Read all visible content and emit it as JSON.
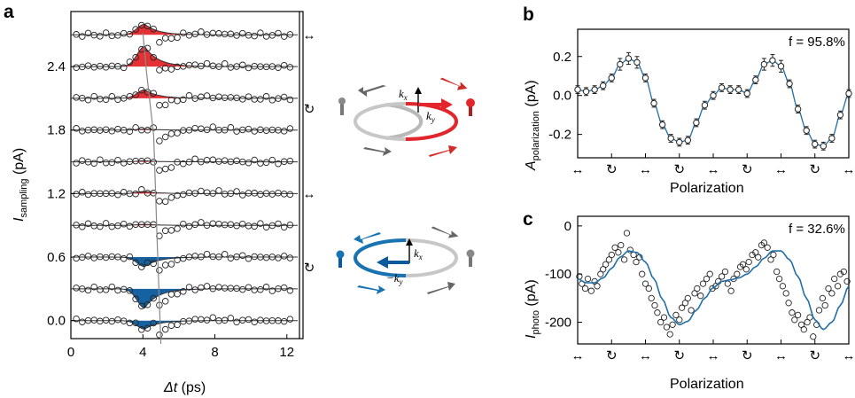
{
  "panels": {
    "a": "a",
    "b": "b",
    "c": "c"
  },
  "chart_data": [
    {
      "panel": "a",
      "type": "line",
      "xlabel_var": "Δt",
      "xlabel_unit": " (ps)",
      "ylabel_var": "I",
      "ylabel_sub": "sampling",
      "ylabel_unit": " (pA)",
      "xlim": [
        0,
        12.7
      ],
      "ylim": [
        -0.17,
        2.92
      ],
      "xticks": [
        "0",
        "4",
        "8",
        "12"
      ],
      "xtick_values": [
        0,
        4,
        8,
        12
      ],
      "yticks": [
        "0.0",
        "0.6",
        "1.2",
        "1.8",
        "2.4"
      ],
      "ytick_values": [
        0.0,
        0.6,
        1.2,
        1.8,
        2.4
      ],
      "offsets": [
        2.7,
        2.4,
        2.1,
        1.8,
        1.5,
        1.2,
        0.9,
        0.6,
        0.3,
        0.0
      ],
      "peak_amplitudes": [
        0.1,
        0.19,
        0.08,
        0.01,
        0.01,
        0.02,
        0.01,
        -0.09,
        -0.18,
        -0.08
      ],
      "peak_center": 4.1,
      "fill_colors": [
        "#e3262b",
        "#e3262b",
        "#e3262b",
        "#e3262b",
        "#e3262b",
        "#e3262b",
        "#e3262b",
        "#0a5a9c",
        "#0a5a9c",
        "#0a5a9c"
      ],
      "dip_trace_x": [
        4.0,
        4.2,
        4.4,
        4.6,
        4.8,
        5.0
      ],
      "dip_trace_y": [
        2.72,
        2.35,
        2.05,
        1.75,
        0.72,
        -0.22
      ],
      "right_labels": [
        "↔",
        "↻",
        "↔",
        "↻"
      ],
      "right_label_values": [
        2.7,
        2.0,
        1.2,
        0.5
      ]
    },
    {
      "panel": "b",
      "type": "line",
      "annotation": "f = 95.8%",
      "xlabel": "Polarization",
      "ylabel_var": "A",
      "ylabel_sub": "polarization",
      "ylabel_unit": " (pA)",
      "ylim": [
        -0.32,
        0.34
      ],
      "yticks": [
        "0.2",
        "0.0",
        "-0.2"
      ],
      "ytick_values": [
        0.2,
        0.0,
        -0.2
      ],
      "xticks": [
        "↔",
        "↻",
        "↔",
        "↻",
        "↔",
        "↻",
        "↔",
        "↻",
        "↔"
      ],
      "x": [
        0,
        1,
        2,
        3,
        4,
        5,
        6,
        7,
        8,
        9,
        10,
        11,
        12,
        13,
        14,
        15,
        16,
        17,
        18,
        19,
        20,
        21,
        22,
        23,
        24,
        25,
        26,
        27,
        28,
        29,
        30,
        31,
        32
      ],
      "xlim": [
        0,
        32
      ],
      "values": [
        0.03,
        0.02,
        0.03,
        0.05,
        0.09,
        0.16,
        0.19,
        0.17,
        0.09,
        -0.04,
        -0.15,
        -0.22,
        -0.24,
        -0.23,
        -0.14,
        -0.05,
        0.0,
        0.04,
        0.03,
        0.03,
        0.01,
        0.08,
        0.16,
        0.18,
        0.15,
        0.06,
        -0.07,
        -0.18,
        -0.25,
        -0.26,
        -0.22,
        -0.1,
        0.01
      ],
      "errors": [
        0.02,
        0.02,
        0.02,
        0.02,
        0.02,
        0.03,
        0.03,
        0.03,
        0.02,
        0.02,
        0.02,
        0.02,
        0.02,
        0.02,
        0.02,
        0.02,
        0.02,
        0.02,
        0.02,
        0.02,
        0.02,
        0.02,
        0.03,
        0.03,
        0.03,
        0.02,
        0.02,
        0.02,
        0.02,
        0.02,
        0.02,
        0.02,
        0.02
      ],
      "fit_color": "#1f6fa9"
    },
    {
      "panel": "c",
      "type": "scatter",
      "annotation": "f = 32.6%",
      "xlabel": "Polarization",
      "ylabel_var": "I",
      "ylabel_sub": "photo",
      "ylabel_unit": " (pA)",
      "ylim": [
        -245,
        20
      ],
      "yticks": [
        "0",
        "-100",
        "-200"
      ],
      "ytick_values": [
        0,
        -100,
        -200
      ],
      "xticks": [
        "↔",
        "↻",
        "↔",
        "↻",
        "↔",
        "↻",
        "↔",
        "↻",
        "↔"
      ],
      "xlim": [
        0,
        32
      ],
      "x": [
        0.2,
        0.5,
        0.9,
        1.2,
        1.6,
        2.0,
        2.3,
        2.7,
        3.0,
        3.3,
        3.7,
        4.0,
        4.4,
        4.8,
        5.1,
        5.5,
        5.8,
        6.2,
        6.6,
        6.9,
        7.3,
        7.6,
        8.0,
        8.4,
        8.7,
        9.1,
        9.4,
        9.8,
        10.2,
        10.5,
        10.9,
        11.2,
        11.6,
        12.0,
        12.3,
        12.7,
        13.0,
        13.4,
        13.8,
        14.1,
        14.5,
        14.8,
        15.2,
        15.6,
        15.9,
        16.3,
        16.6,
        17.0,
        17.4,
        17.7,
        18.1,
        18.4,
        18.8,
        19.2,
        19.5,
        19.9,
        20.2,
        20.6,
        21.0,
        21.3,
        21.7,
        22.0,
        22.4,
        22.8,
        23.1,
        23.5,
        23.8,
        24.2,
        24.6,
        24.9,
        25.3,
        25.6,
        26.0,
        26.4,
        26.7,
        27.1,
        27.4,
        27.8,
        28.2,
        28.5,
        28.9,
        29.2,
        29.6,
        30.0,
        30.3,
        30.7,
        31.0,
        31.4,
        31.8
      ],
      "values": [
        -105,
        -120,
        -130,
        -110,
        -135,
        -115,
        -125,
        -100,
        -90,
        -80,
        -70,
        -60,
        -45,
        -55,
        -40,
        -70,
        -15,
        -50,
        -60,
        -75,
        -65,
        -100,
        -120,
        -130,
        -150,
        -165,
        -180,
        -200,
        -190,
        -210,
        -225,
        -205,
        -185,
        -195,
        -170,
        -160,
        -150,
        -175,
        -140,
        -130,
        -145,
        -120,
        -110,
        -100,
        -130,
        -125,
        -115,
        -105,
        -95,
        -120,
        -135,
        -110,
        -100,
        -85,
        -80,
        -90,
        -75,
        -60,
        -55,
        -65,
        -40,
        -35,
        -45,
        -70,
        -60,
        -95,
        -110,
        -125,
        -140,
        -160,
        -180,
        -195,
        -185,
        -205,
        -215,
        -200,
        -190,
        -230,
        -205,
        -175,
        -150,
        -165,
        -130,
        -140,
        -110,
        -125,
        -100,
        -95,
        -115
      ],
      "fit_x": [
        0,
        1,
        2,
        3,
        4,
        5,
        6,
        7,
        8,
        9,
        10,
        11,
        12,
        13,
        14,
        15,
        16,
        17,
        18,
        19,
        20,
        21,
        22,
        23,
        24,
        25,
        26,
        27,
        28,
        29,
        30,
        31,
        32
      ],
      "fit_values": [
        -110,
        -118,
        -118,
        -108,
        -88,
        -65,
        -52,
        -55,
        -75,
        -110,
        -152,
        -190,
        -205,
        -198,
        -175,
        -150,
        -128,
        -115,
        -112,
        -108,
        -100,
        -85,
        -67,
        -52,
        -52,
        -70,
        -105,
        -150,
        -195,
        -215,
        -200,
        -165,
        -125
      ],
      "fit_color": "#1f6fa9"
    }
  ],
  "schematic": {
    "top": {
      "kx": "k",
      "kx_sub": "x",
      "ky": "k",
      "ky_sub": "y",
      "color": "#e3262b"
    },
    "bottom": {
      "kx": "k",
      "kx_sub": "x",
      "ky": "−k",
      "ky_sub": "y",
      "color": "#1773b2"
    }
  }
}
